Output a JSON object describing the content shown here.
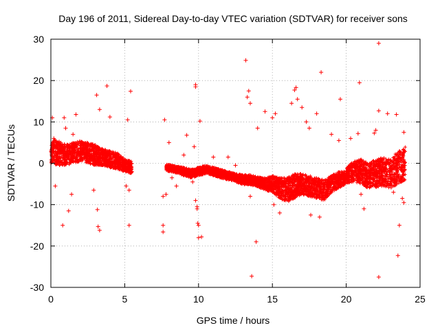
{
  "chart_data": {
    "type": "scatter",
    "title": "Day 196 of 2011, Sidereal Day-to-day VTEC variation (SDTVAR) for receiver sons",
    "xlabel": "GPS time / hours",
    "ylabel": "SDTVAR / TECUs",
    "xlim": [
      0,
      25
    ],
    "ylim": [
      -30,
      30
    ],
    "x_ticks": [
      0,
      5,
      10,
      15,
      20,
      25
    ],
    "y_ticks": [
      -30,
      -20,
      -10,
      0,
      10,
      20,
      30
    ],
    "x_tick_labels": [
      "0",
      "5",
      "10",
      "15",
      "20",
      "25"
    ],
    "y_tick_labels": [
      "-30",
      "-20",
      "-10",
      "0",
      "10",
      "20",
      "30"
    ],
    "grid": true,
    "marker": "+",
    "series_color": "#ff0000",
    "series": [
      {
        "name": "SDTVAR",
        "dense_band_segments": [
          {
            "x": [
              0.0,
              0.5,
              1.0,
              1.5,
              2.0,
              2.5,
              3.0,
              3.5,
              4.0,
              4.5,
              5.0,
              5.5
            ],
            "center": [
              3.0,
              2.5,
              2.0,
              2.5,
              3.0,
              2.5,
              2.0,
              1.5,
              1.0,
              0.5,
              -0.5,
              -1.0
            ],
            "halfwidth": [
              3.0,
              3.0,
              2.5,
              2.5,
              2.5,
              2.5,
              2.5,
              2.0,
              2.0,
              2.0,
              1.5,
              1.5
            ]
          },
          {
            "x": [
              7.8,
              8.5,
              9.0,
              9.5,
              10.0,
              10.5,
              11.0,
              11.5,
              12.0,
              12.5,
              13.0,
              13.5,
              14.0
            ],
            "center": [
              -1.0,
              -1.5,
              -2.0,
              -2.5,
              -2.0,
              -1.5,
              -2.0,
              -2.5,
              -3.0,
              -3.5,
              -4.0,
              -4.0,
              -4.5
            ],
            "halfwidth": [
              0.8,
              0.8,
              1.0,
              1.0,
              1.0,
              1.0,
              1.0,
              1.0,
              1.0,
              1.0,
              1.2,
              1.2,
              1.2
            ]
          },
          {
            "x": [
              14.0,
              14.5,
              15.0,
              15.5,
              16.0,
              16.5,
              17.0,
              17.5,
              18.0,
              18.5,
              19.0,
              19.5,
              20.0
            ],
            "center": [
              -4.5,
              -5.0,
              -5.0,
              -6.0,
              -6.5,
              -5.5,
              -5.0,
              -5.5,
              -6.0,
              -6.5,
              -5.0,
              -4.0,
              -3.5
            ],
            "halfwidth": [
              1.2,
              1.5,
              2.0,
              2.5,
              3.0,
              3.0,
              2.5,
              2.5,
              2.5,
              2.5,
              2.0,
              2.0,
              1.5
            ]
          },
          {
            "x": [
              20.0,
              20.5,
              21.0,
              21.5,
              22.0,
              22.5,
              23.0,
              23.5,
              24.0
            ],
            "center": [
              -3.0,
              -2.0,
              -2.0,
              -3.0,
              -2.5,
              -2.0,
              -2.5,
              -1.0,
              0.0
            ],
            "halfwidth": [
              2.0,
              2.5,
              3.0,
              3.0,
              3.5,
              3.5,
              3.5,
              4.0,
              4.0
            ]
          }
        ],
        "outliers": [
          [
            0.1,
            11.0
          ],
          [
            0.2,
            6.0
          ],
          [
            0.3,
            -5.5
          ],
          [
            0.8,
            -15.0
          ],
          [
            0.9,
            11.0
          ],
          [
            1.0,
            8.5
          ],
          [
            1.2,
            -11.5
          ],
          [
            1.4,
            -7.5
          ],
          [
            1.5,
            7.0
          ],
          [
            1.7,
            11.8
          ],
          [
            2.9,
            -6.5
          ],
          [
            3.1,
            16.5
          ],
          [
            3.15,
            -11.2
          ],
          [
            3.2,
            -15.3
          ],
          [
            3.3,
            13.0
          ],
          [
            3.3,
            -16.2
          ],
          [
            3.8,
            18.7
          ],
          [
            4.0,
            11.2
          ],
          [
            5.1,
            -5.5
          ],
          [
            5.2,
            10.5
          ],
          [
            5.3,
            -6.5
          ],
          [
            5.3,
            -15.0
          ],
          [
            5.4,
            17.4
          ],
          [
            7.6,
            -8.0
          ],
          [
            7.6,
            -15.0
          ],
          [
            7.6,
            -16.6
          ],
          [
            7.7,
            10.5
          ],
          [
            7.8,
            -7.5
          ],
          [
            8.0,
            5.0
          ],
          [
            8.2,
            -3.5
          ],
          [
            8.5,
            -5.5
          ],
          [
            9.0,
            2.0
          ],
          [
            9.2,
            6.8
          ],
          [
            9.6,
            -4.5
          ],
          [
            9.7,
            4.0
          ],
          [
            9.8,
            19.0
          ],
          [
            9.8,
            18.5
          ],
          [
            9.8,
            -9.0
          ],
          [
            9.9,
            -10.5
          ],
          [
            9.9,
            -11.0
          ],
          [
            9.95,
            -14.5
          ],
          [
            10.0,
            -15.0
          ],
          [
            10.0,
            -18.0
          ],
          [
            10.1,
            10.2
          ],
          [
            10.2,
            -17.8
          ],
          [
            11.0,
            1.5
          ],
          [
            12.0,
            1.5
          ],
          [
            12.5,
            -0.5
          ],
          [
            13.2,
            24.9
          ],
          [
            13.3,
            16.0
          ],
          [
            13.4,
            17.5
          ],
          [
            13.5,
            14.5
          ],
          [
            13.5,
            -8.0
          ],
          [
            13.6,
            -27.3
          ],
          [
            13.9,
            -19.0
          ],
          [
            14.0,
            8.5
          ],
          [
            14.5,
            12.5
          ],
          [
            15.0,
            11.0
          ],
          [
            15.2,
            12.0
          ],
          [
            15.1,
            -10.0
          ],
          [
            15.5,
            -12.0
          ],
          [
            16.3,
            14.5
          ],
          [
            16.5,
            17.7
          ],
          [
            16.6,
            18.3
          ],
          [
            16.7,
            15.5
          ],
          [
            17.0,
            13.5
          ],
          [
            17.3,
            10.0
          ],
          [
            17.5,
            8.5
          ],
          [
            17.6,
            -12.5
          ],
          [
            18.0,
            12.0
          ],
          [
            18.2,
            -13.0
          ],
          [
            18.3,
            22.0
          ],
          [
            19.0,
            7.0
          ],
          [
            19.5,
            5.5
          ],
          [
            19.6,
            15.5
          ],
          [
            20.3,
            6.0
          ],
          [
            20.8,
            7.2
          ],
          [
            20.9,
            19.5
          ],
          [
            21.0,
            -7.5
          ],
          [
            21.2,
            -11.0
          ],
          [
            21.9,
            7.3
          ],
          [
            22.0,
            8.0
          ],
          [
            22.1,
            -2.5
          ],
          [
            22.2,
            29.0
          ],
          [
            22.2,
            12.7
          ],
          [
            22.2,
            -27.5
          ],
          [
            22.8,
            12.0
          ],
          [
            23.2,
            -7.0
          ],
          [
            23.4,
            11.8
          ],
          [
            23.5,
            -22.3
          ],
          [
            23.6,
            -15.0
          ],
          [
            23.8,
            -8.5
          ],
          [
            23.9,
            7.5
          ],
          [
            23.9,
            -9.5
          ]
        ]
      }
    ]
  }
}
